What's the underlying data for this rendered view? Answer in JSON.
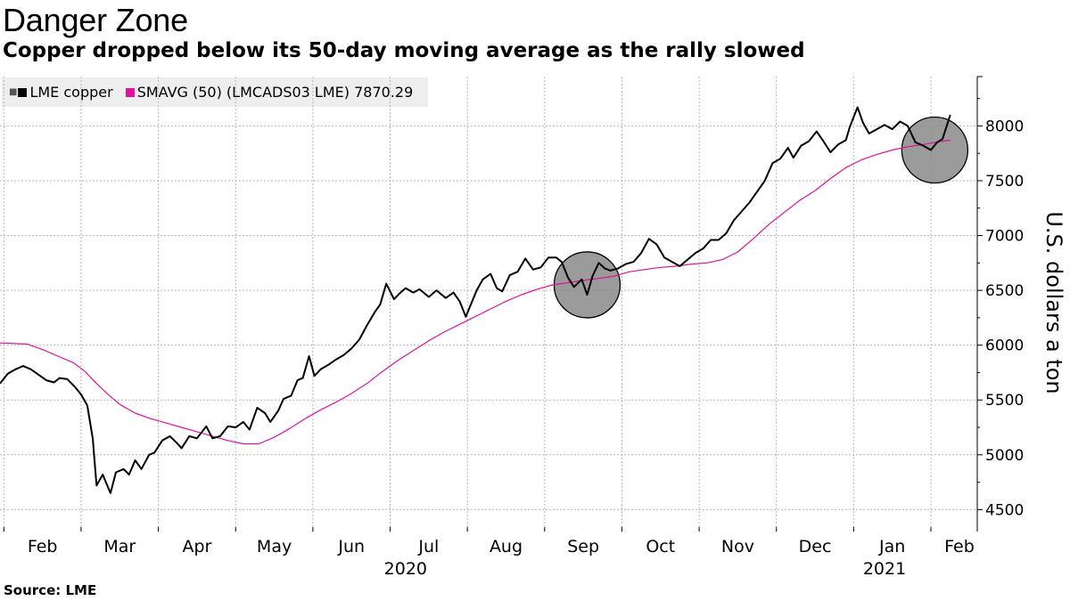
{
  "title": "Danger Zone",
  "subtitle": "Copper dropped below its 50-day moving average as the rally slowed",
  "source": "Source:  LME",
  "legend": {
    "series1": "LME copper",
    "series2": "SMAVG (50) (LMCADS03 LME) 7870.29"
  },
  "colors": {
    "copper": "#000000",
    "smavg": "#e0119d",
    "grid": "#b7b7b7",
    "circle": "#8a8a8a"
  },
  "chart_data": {
    "type": "line",
    "title": "Danger Zone",
    "ylabel": "U.S. dollars a ton",
    "xlabel": "",
    "ylim": [
      4300,
      8450
    ],
    "yticks": [
      4500,
      5000,
      5500,
      6000,
      6500,
      7000,
      7500,
      8000
    ],
    "xlim": [
      -0.05,
      12.6
    ],
    "months": [
      {
        "label": "Feb",
        "x": 0
      },
      {
        "label": "Mar",
        "x": 1
      },
      {
        "label": "Apr",
        "x": 2
      },
      {
        "label": "May",
        "x": 3
      },
      {
        "label": "Jun",
        "x": 4
      },
      {
        "label": "Jul",
        "x": 5
      },
      {
        "label": "Aug",
        "x": 6
      },
      {
        "label": "Sep",
        "x": 7
      },
      {
        "label": "Oct",
        "x": 8
      },
      {
        "label": "Nov",
        "x": 9
      },
      {
        "label": "Dec",
        "x": 10
      },
      {
        "label": "Jan",
        "x": 11
      },
      {
        "label": "Feb",
        "x": 12
      }
    ],
    "years": [
      {
        "label": "2020",
        "x": 5.2
      },
      {
        "label": "2021",
        "x": 11.4
      }
    ],
    "series": [
      {
        "name": "LME copper",
        "points": [
          [
            -0.05,
            5650
          ],
          [
            0.05,
            5740
          ],
          [
            0.15,
            5780
          ],
          [
            0.25,
            5810
          ],
          [
            0.35,
            5780
          ],
          [
            0.45,
            5730
          ],
          [
            0.55,
            5680
          ],
          [
            0.65,
            5660
          ],
          [
            0.72,
            5700
          ],
          [
            0.82,
            5690
          ],
          [
            0.92,
            5620
          ],
          [
            1.0,
            5550
          ],
          [
            1.08,
            5450
          ],
          [
            1.15,
            5150
          ],
          [
            1.2,
            4720
          ],
          [
            1.28,
            4820
          ],
          [
            1.38,
            4650
          ],
          [
            1.45,
            4840
          ],
          [
            1.55,
            4870
          ],
          [
            1.62,
            4820
          ],
          [
            1.7,
            4950
          ],
          [
            1.78,
            4870
          ],
          [
            1.88,
            5000
          ],
          [
            1.95,
            5020
          ],
          [
            2.05,
            5130
          ],
          [
            2.15,
            5170
          ],
          [
            2.25,
            5100
          ],
          [
            2.3,
            5060
          ],
          [
            2.4,
            5170
          ],
          [
            2.5,
            5150
          ],
          [
            2.62,
            5260
          ],
          [
            2.7,
            5150
          ],
          [
            2.8,
            5170
          ],
          [
            2.9,
            5260
          ],
          [
            3.0,
            5250
          ],
          [
            3.1,
            5300
          ],
          [
            3.18,
            5230
          ],
          [
            3.28,
            5430
          ],
          [
            3.38,
            5380
          ],
          [
            3.45,
            5300
          ],
          [
            3.55,
            5400
          ],
          [
            3.62,
            5510
          ],
          [
            3.72,
            5540
          ],
          [
            3.8,
            5680
          ],
          [
            3.87,
            5700
          ],
          [
            3.95,
            5900
          ],
          [
            4.02,
            5720
          ],
          [
            4.1,
            5780
          ],
          [
            4.2,
            5820
          ],
          [
            4.3,
            5870
          ],
          [
            4.4,
            5910
          ],
          [
            4.5,
            5970
          ],
          [
            4.6,
            6050
          ],
          [
            4.7,
            6180
          ],
          [
            4.8,
            6300
          ],
          [
            4.87,
            6370
          ],
          [
            4.95,
            6560
          ],
          [
            5.05,
            6420
          ],
          [
            5.12,
            6470
          ],
          [
            5.2,
            6520
          ],
          [
            5.3,
            6480
          ],
          [
            5.38,
            6510
          ],
          [
            5.5,
            6440
          ],
          [
            5.6,
            6500
          ],
          [
            5.72,
            6430
          ],
          [
            5.82,
            6480
          ],
          [
            5.9,
            6400
          ],
          [
            5.98,
            6260
          ],
          [
            6.05,
            6380
          ],
          [
            6.12,
            6500
          ],
          [
            6.2,
            6600
          ],
          [
            6.3,
            6650
          ],
          [
            6.38,
            6520
          ],
          [
            6.45,
            6490
          ],
          [
            6.55,
            6640
          ],
          [
            6.65,
            6670
          ],
          [
            6.75,
            6790
          ],
          [
            6.85,
            6690
          ],
          [
            6.95,
            6710
          ],
          [
            7.05,
            6800
          ],
          [
            7.15,
            6800
          ],
          [
            7.22,
            6760
          ],
          [
            7.3,
            6620
          ],
          [
            7.38,
            6530
          ],
          [
            7.48,
            6600
          ],
          [
            7.55,
            6460
          ],
          [
            7.62,
            6630
          ],
          [
            7.7,
            6750
          ],
          [
            7.78,
            6700
          ],
          [
            7.85,
            6680
          ],
          [
            7.95,
            6700
          ],
          [
            8.05,
            6740
          ],
          [
            8.15,
            6760
          ],
          [
            8.25,
            6840
          ],
          [
            8.35,
            6970
          ],
          [
            8.45,
            6920
          ],
          [
            8.55,
            6800
          ],
          [
            8.65,
            6760
          ],
          [
            8.75,
            6720
          ],
          [
            8.85,
            6780
          ],
          [
            8.95,
            6840
          ],
          [
            9.05,
            6880
          ],
          [
            9.15,
            6960
          ],
          [
            9.25,
            6960
          ],
          [
            9.35,
            7020
          ],
          [
            9.45,
            7140
          ],
          [
            9.55,
            7220
          ],
          [
            9.65,
            7300
          ],
          [
            9.75,
            7400
          ],
          [
            9.85,
            7500
          ],
          [
            9.95,
            7660
          ],
          [
            10.05,
            7700
          ],
          [
            10.15,
            7800
          ],
          [
            10.22,
            7710
          ],
          [
            10.32,
            7820
          ],
          [
            10.42,
            7860
          ],
          [
            10.52,
            7950
          ],
          [
            10.6,
            7870
          ],
          [
            10.7,
            7760
          ],
          [
            10.8,
            7830
          ],
          [
            10.9,
            7870
          ],
          [
            10.95,
            7990
          ],
          [
            11.05,
            8170
          ],
          [
            11.12,
            8030
          ],
          [
            11.2,
            7930
          ],
          [
            11.3,
            7970
          ],
          [
            11.4,
            8010
          ],
          [
            11.5,
            7970
          ],
          [
            11.6,
            8040
          ],
          [
            11.7,
            8000
          ],
          [
            11.8,
            7850
          ],
          [
            11.9,
            7820
          ],
          [
            12.0,
            7780
          ],
          [
            12.08,
            7850
          ],
          [
            12.15,
            7880
          ],
          [
            12.25,
            8100
          ]
        ]
      },
      {
        "name": "SMAVG (50) (LMCADS03 LME) 7870.29",
        "points": [
          [
            -0.05,
            6020
          ],
          [
            0.3,
            6010
          ],
          [
            0.5,
            5960
          ],
          [
            0.7,
            5900
          ],
          [
            0.9,
            5840
          ],
          [
            1.05,
            5760
          ],
          [
            1.2,
            5650
          ],
          [
            1.35,
            5550
          ],
          [
            1.5,
            5460
          ],
          [
            1.7,
            5380
          ],
          [
            1.9,
            5330
          ],
          [
            2.1,
            5290
          ],
          [
            2.3,
            5250
          ],
          [
            2.5,
            5210
          ],
          [
            2.7,
            5170
          ],
          [
            2.9,
            5130
          ],
          [
            3.1,
            5100
          ],
          [
            3.3,
            5100
          ],
          [
            3.5,
            5160
          ],
          [
            3.7,
            5240
          ],
          [
            3.9,
            5330
          ],
          [
            4.1,
            5410
          ],
          [
            4.3,
            5480
          ],
          [
            4.5,
            5560
          ],
          [
            4.7,
            5650
          ],
          [
            4.9,
            5760
          ],
          [
            5.1,
            5860
          ],
          [
            5.3,
            5950
          ],
          [
            5.5,
            6040
          ],
          [
            5.7,
            6120
          ],
          [
            5.9,
            6190
          ],
          [
            6.1,
            6260
          ],
          [
            6.3,
            6330
          ],
          [
            6.5,
            6400
          ],
          [
            6.7,
            6460
          ],
          [
            6.9,
            6510
          ],
          [
            7.1,
            6550
          ],
          [
            7.3,
            6570
          ],
          [
            7.5,
            6590
          ],
          [
            7.7,
            6610
          ],
          [
            7.9,
            6630
          ],
          [
            8.1,
            6670
          ],
          [
            8.3,
            6690
          ],
          [
            8.5,
            6710
          ],
          [
            8.7,
            6720
          ],
          [
            8.9,
            6740
          ],
          [
            9.1,
            6750
          ],
          [
            9.3,
            6780
          ],
          [
            9.5,
            6850
          ],
          [
            9.7,
            6970
          ],
          [
            9.9,
            7100
          ],
          [
            10.1,
            7210
          ],
          [
            10.3,
            7320
          ],
          [
            10.5,
            7410
          ],
          [
            10.7,
            7520
          ],
          [
            10.9,
            7620
          ],
          [
            11.1,
            7690
          ],
          [
            11.3,
            7740
          ],
          [
            11.5,
            7780
          ],
          [
            11.7,
            7810
          ],
          [
            11.9,
            7830
          ],
          [
            12.1,
            7855
          ],
          [
            12.25,
            7870
          ]
        ]
      }
    ],
    "annotations": [
      {
        "type": "circle",
        "x": 7.55,
        "y": 6550,
        "label": "below average highlight"
      },
      {
        "type": "circle",
        "x": 12.05,
        "y": 7780,
        "label": "below average highlight"
      }
    ]
  }
}
